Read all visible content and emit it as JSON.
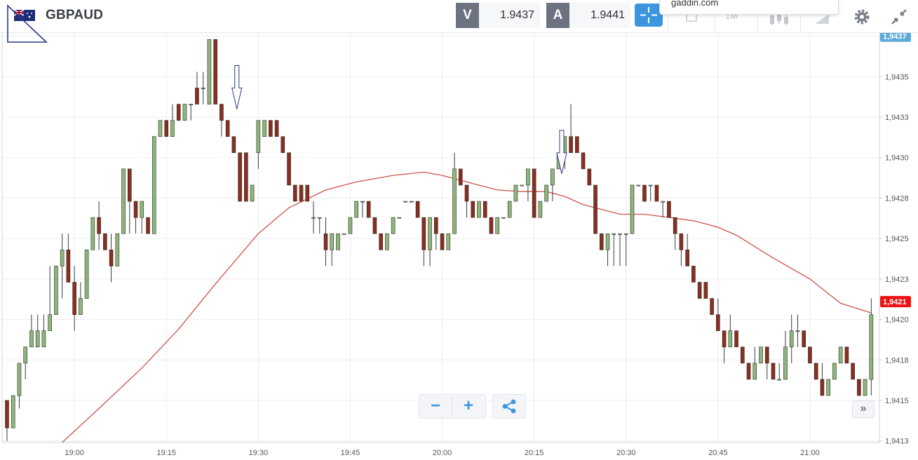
{
  "header": {
    "symbol": "GBPAUD",
    "bid_label": "V",
    "bid_value": "1.9437",
    "ask_label": "A",
    "ask_value": "1.9441",
    "timeframe": "1M",
    "popup_text": "gaddin.com"
  },
  "colors": {
    "up": "#8db87a",
    "down": "#8b2e1e",
    "ma": "#cd5348",
    "accent": "#3b96df",
    "last_price_bg": "#ee1111",
    "current_price_bg": "#5aa9d8"
  },
  "icons": [
    "flag-icon",
    "crosshair-icon",
    "chart-type-icon",
    "candlestick-icon",
    "draw-icon",
    "gear-icon",
    "collapse-icon",
    "zoom-out-icon",
    "zoom-in-icon",
    "share-icon",
    "forward-icon",
    "arrow-down-icon"
  ],
  "controls": {
    "zoom_out": "−",
    "zoom_in": "+",
    "forward": "»"
  },
  "chart_data": {
    "type": "candlestick",
    "ylim": [
      1.94124,
      1.94377
    ],
    "y_ticks": [
      {
        "value": 1.94375,
        "label": "1,9437"
      },
      {
        "value": 1.9435,
        "label": "1,9435"
      },
      {
        "value": 1.94325,
        "label": "1,9433"
      },
      {
        "value": 1.943,
        "label": "1,9430"
      },
      {
        "value": 1.94275,
        "label": "1,9428"
      },
      {
        "value": 1.9425,
        "label": "1,9425"
      },
      {
        "value": 1.94225,
        "label": "1,9423"
      },
      {
        "value": 1.942,
        "label": "1,9420"
      },
      {
        "value": 1.94175,
        "label": "1,9418"
      },
      {
        "value": 1.9415,
        "label": "1,9415"
      },
      {
        "value": 1.94125,
        "label": "1,9413"
      }
    ],
    "x_ticks": [
      {
        "index": 11,
        "label": "19:00"
      },
      {
        "index": 26,
        "label": "19:15"
      },
      {
        "index": 41,
        "label": "19:30"
      },
      {
        "index": 56,
        "label": "19:45"
      },
      {
        "index": 71,
        "label": "20:00"
      },
      {
        "index": 86,
        "label": "20:15"
      },
      {
        "index": 101,
        "label": "20:30"
      },
      {
        "index": 116,
        "label": "20:45"
      },
      {
        "index": 131,
        "label": "21:00"
      }
    ],
    "current_price": {
      "value": 1.94375,
      "label": "1,9437"
    },
    "last_price": {
      "value": 1.94211,
      "label": "1,9421"
    },
    "moving_average": [
      [
        9,
        1.94124
      ],
      [
        15,
        1.94145
      ],
      [
        22,
        1.9417
      ],
      [
        28,
        1.94194
      ],
      [
        34,
        1.94222
      ],
      [
        41,
        1.94253
      ],
      [
        46,
        1.94269
      ],
      [
        52,
        1.9428
      ],
      [
        57,
        1.94285
      ],
      [
        63,
        1.94289
      ],
      [
        68,
        1.94291
      ],
      [
        71,
        1.94289
      ],
      [
        76,
        1.94284
      ],
      [
        80,
        1.9428
      ],
      [
        84,
        1.94279
      ],
      [
        88,
        1.94279
      ],
      [
        91,
        1.94276
      ],
      [
        94,
        1.94271
      ],
      [
        97,
        1.94268
      ],
      [
        100,
        1.94265
      ],
      [
        104,
        1.94265
      ],
      [
        108,
        1.94263
      ],
      [
        112,
        1.94261
      ],
      [
        116,
        1.94257
      ],
      [
        119,
        1.94252
      ],
      [
        125,
        1.94238
      ],
      [
        131,
        1.94225
      ],
      [
        136,
        1.9421
      ],
      [
        141,
        1.94204
      ]
    ],
    "arrows": [
      {
        "index": 37.5,
        "value": 1.9433
      },
      {
        "index": 90.5,
        "value": 1.9429
      }
    ],
    "candles": [
      [
        1.9415,
        1.94133,
        1.9415,
        1.94125
      ],
      [
        1.94133,
        1.94153,
        1.94153,
        1.94133
      ],
      [
        1.94153,
        1.94173,
        1.94173,
        1.94145
      ],
      [
        1.94173,
        1.94183,
        1.94183,
        1.94163
      ],
      [
        1.94183,
        1.94193,
        1.94203,
        1.94183
      ],
      [
        1.94183,
        1.94193,
        1.94203,
        1.94183
      ],
      [
        1.94183,
        1.94193,
        1.94203,
        1.94183
      ],
      [
        1.94193,
        1.94203,
        1.94233,
        1.94193
      ],
      [
        1.94203,
        1.94233,
        1.94233,
        1.94203
      ],
      [
        1.94233,
        1.94243,
        1.94253,
        1.94213
      ],
      [
        1.94243,
        1.94223,
        1.94253,
        1.94223
      ],
      [
        1.94223,
        1.94203,
        1.94233,
        1.94193
      ],
      [
        1.94203,
        1.94213,
        1.94223,
        1.94203
      ],
      [
        1.94213,
        1.94243,
        1.94243,
        1.94213
      ],
      [
        1.94243,
        1.94263,
        1.94263,
        1.94243
      ],
      [
        1.94263,
        1.94253,
        1.94273,
        1.94243
      ],
      [
        1.94253,
        1.94243,
        1.94253,
        1.94243
      ],
      [
        1.94243,
        1.94233,
        1.94253,
        1.94223
      ],
      [
        1.94233,
        1.94253,
        1.94253,
        1.94233
      ],
      [
        1.94253,
        1.94293,
        1.94293,
        1.94253
      ],
      [
        1.94293,
        1.94273,
        1.94293,
        1.94253
      ],
      [
        1.94273,
        1.94263,
        1.94273,
        1.94253
      ],
      [
        1.94263,
        1.94273,
        1.94273,
        1.94253
      ],
      [
        1.94263,
        1.94253,
        1.94263,
        1.94253
      ],
      [
        1.94253,
        1.94313,
        1.94313,
        1.94253
      ],
      [
        1.94313,
        1.94323,
        1.94323,
        1.94313
      ],
      [
        1.94323,
        1.94313,
        1.94323,
        1.94313
      ],
      [
        1.94313,
        1.94323,
        1.94333,
        1.94313
      ],
      [
        1.94333,
        1.94323,
        1.94333,
        1.94323
      ],
      [
        1.94323,
        1.94333,
        1.94333,
        1.94323
      ],
      [
        1.94333,
        1.94333,
        1.94333,
        1.94323
      ],
      [
        1.94343,
        1.94333,
        1.94353,
        1.94333
      ],
      [
        1.94343,
        1.94343,
        1.94353,
        1.94333
      ],
      [
        1.94333,
        1.94373,
        1.94373,
        1.94333
      ],
      [
        1.94373,
        1.94333,
        1.94373,
        1.94333
      ],
      [
        1.94333,
        1.94323,
        1.94333,
        1.94313
      ],
      [
        1.94323,
        1.94313,
        1.94323,
        1.94313
      ],
      [
        1.94313,
        1.94303,
        1.94313,
        1.94303
      ],
      [
        1.94303,
        1.94273,
        1.94303,
        1.94273
      ],
      [
        1.94303,
        1.94273,
        1.94303,
        1.94273
      ],
      [
        1.94273,
        1.94283,
        1.94283,
        1.94273
      ],
      [
        1.94303,
        1.94323,
        1.94323,
        1.94293
      ],
      [
        1.94313,
        1.94323,
        1.94323,
        1.94313
      ],
      [
        1.94323,
        1.94313,
        1.94323,
        1.94313
      ],
      [
        1.94323,
        1.94313,
        1.94323,
        1.94313
      ],
      [
        1.94313,
        1.94303,
        1.94313,
        1.94303
      ],
      [
        1.94303,
        1.94283,
        1.94303,
        1.94283
      ],
      [
        1.94283,
        1.94273,
        1.94283,
        1.94273
      ],
      [
        1.94283,
        1.94273,
        1.94283,
        1.94273
      ],
      [
        1.94283,
        1.94273,
        1.94283,
        1.94273
      ],
      [
        1.94263,
        1.94263,
        1.94273,
        1.94253
      ],
      [
        1.94263,
        1.94263,
        1.94263,
        1.94253
      ],
      [
        1.94253,
        1.94243,
        1.94263,
        1.94233
      ],
      [
        1.94243,
        1.94253,
        1.94253,
        1.94233
      ],
      [
        1.94243,
        1.94253,
        1.94253,
        1.94243
      ],
      [
        1.94253,
        1.94253,
        1.94253,
        1.94253
      ],
      [
        1.94253,
        1.94263,
        1.94263,
        1.94253
      ],
      [
        1.94263,
        1.94273,
        1.94273,
        1.94263
      ],
      [
        1.94273,
        1.94273,
        1.94273,
        1.94263
      ],
      [
        1.94273,
        1.94263,
        1.94273,
        1.94263
      ],
      [
        1.94263,
        1.94253,
        1.94263,
        1.94253
      ],
      [
        1.94253,
        1.94243,
        1.94253,
        1.94243
      ],
      [
        1.94243,
        1.94253,
        1.94253,
        1.94243
      ],
      [
        1.94253,
        1.94263,
        1.94263,
        1.94253
      ],
      [
        1.94263,
        1.94263,
        1.94263,
        1.94263
      ],
      [
        1.94273,
        1.94273,
        1.94273,
        1.94273
      ],
      [
        1.94273,
        1.94273,
        1.94273,
        1.94273
      ],
      [
        1.94273,
        1.94263,
        1.94273,
        1.94263
      ],
      [
        1.94263,
        1.94243,
        1.94263,
        1.94233
      ],
      [
        1.94243,
        1.94263,
        1.94263,
        1.94233
      ],
      [
        1.94263,
        1.94253,
        1.94263,
        1.94243
      ],
      [
        1.94253,
        1.94243,
        1.94253,
        1.94243
      ],
      [
        1.94243,
        1.94253,
        1.94253,
        1.94243
      ],
      [
        1.94253,
        1.94293,
        1.94303,
        1.94253
      ],
      [
        1.94293,
        1.94283,
        1.94293,
        1.94283
      ],
      [
        1.94283,
        1.94273,
        1.94283,
        1.94263
      ],
      [
        1.94273,
        1.94263,
        1.94273,
        1.94263
      ],
      [
        1.94263,
        1.94273,
        1.94273,
        1.94263
      ],
      [
        1.94273,
        1.94263,
        1.94273,
        1.94263
      ],
      [
        1.94263,
        1.94253,
        1.94263,
        1.94253
      ],
      [
        1.94253,
        1.94263,
        1.94263,
        1.94253
      ],
      [
        1.94263,
        1.94263,
        1.94263,
        1.94263
      ],
      [
        1.94263,
        1.94273,
        1.94273,
        1.94263
      ],
      [
        1.94273,
        1.94283,
        1.94283,
        1.94273
      ],
      [
        1.94283,
        1.94283,
        1.94283,
        1.94283
      ],
      [
        1.94283,
        1.94293,
        1.94293,
        1.94273
      ],
      [
        1.94293,
        1.94263,
        1.94293,
        1.94263
      ],
      [
        1.94263,
        1.94273,
        1.94273,
        1.94263
      ],
      [
        1.94273,
        1.94283,
        1.94283,
        1.94273
      ],
      [
        1.94283,
        1.94293,
        1.94293,
        1.94273
      ],
      [
        1.94293,
        1.94303,
        1.94303,
        1.94293
      ],
      [
        1.94303,
        1.94313,
        1.94313,
        1.94293
      ],
      [
        1.94313,
        1.94303,
        1.94333,
        1.94303
      ],
      [
        1.94313,
        1.94303,
        1.94313,
        1.94303
      ],
      [
        1.94303,
        1.94293,
        1.94303,
        1.94293
      ],
      [
        1.94293,
        1.94283,
        1.94293,
        1.94283
      ],
      [
        1.94283,
        1.94253,
        1.94283,
        1.94253
      ],
      [
        1.94253,
        1.94243,
        1.94253,
        1.94243
      ],
      [
        1.94243,
        1.94253,
        1.94253,
        1.94233
      ],
      [
        1.94253,
        1.94253,
        1.94253,
        1.94233
      ],
      [
        1.94253,
        1.94253,
        1.94253,
        1.94233
      ],
      [
        1.94253,
        1.94253,
        1.94253,
        1.94233
      ],
      [
        1.94253,
        1.94283,
        1.94283,
        1.94253
      ],
      [
        1.94283,
        1.94283,
        1.94283,
        1.94283
      ],
      [
        1.94283,
        1.94273,
        1.94283,
        1.94273
      ],
      [
        1.94283,
        1.94283,
        1.94283,
        1.94273
      ],
      [
        1.94283,
        1.94273,
        1.94283,
        1.94273
      ],
      [
        1.94273,
        1.94273,
        1.94273,
        1.94263
      ],
      [
        1.94273,
        1.94263,
        1.94273,
        1.94263
      ],
      [
        1.94263,
        1.94253,
        1.94263,
        1.94243
      ],
      [
        1.94253,
        1.94243,
        1.94253,
        1.94233
      ],
      [
        1.94243,
        1.94233,
        1.94253,
        1.94233
      ],
      [
        1.94233,
        1.94223,
        1.94233,
        1.94223
      ],
      [
        1.94223,
        1.94213,
        1.94223,
        1.94213
      ],
      [
        1.94223,
        1.94213,
        1.94223,
        1.94213
      ],
      [
        1.94213,
        1.94203,
        1.94213,
        1.94203
      ],
      [
        1.94203,
        1.94193,
        1.94213,
        1.94193
      ],
      [
        1.94193,
        1.94183,
        1.94193,
        1.94173
      ],
      [
        1.94183,
        1.94193,
        1.94203,
        1.94183
      ],
      [
        1.94193,
        1.94183,
        1.94193,
        1.94183
      ],
      [
        1.94183,
        1.94173,
        1.94183,
        1.94173
      ],
      [
        1.94173,
        1.94163,
        1.94173,
        1.94163
      ],
      [
        1.94163,
        1.94173,
        1.94183,
        1.94163
      ],
      [
        1.94173,
        1.94183,
        1.94183,
        1.94173
      ],
      [
        1.94183,
        1.94173,
        1.94183,
        1.94163
      ],
      [
        1.94173,
        1.94163,
        1.94173,
        1.94163
      ],
      [
        1.94163,
        1.94163,
        1.94173,
        1.94163
      ],
      [
        1.94163,
        1.94183,
        1.94193,
        1.94163
      ],
      [
        1.94183,
        1.94193,
        1.94203,
        1.94173
      ],
      [
        1.94193,
        1.94193,
        1.94203,
        1.94183
      ],
      [
        1.94193,
        1.94183,
        1.94193,
        1.94183
      ],
      [
        1.94183,
        1.94173,
        1.94183,
        1.94173
      ],
      [
        1.94173,
        1.94163,
        1.94173,
        1.94163
      ],
      [
        1.94163,
        1.94153,
        1.94173,
        1.94153
      ],
      [
        1.94153,
        1.94163,
        1.94163,
        1.94153
      ],
      [
        1.94163,
        1.94173,
        1.94173,
        1.94163
      ],
      [
        1.94173,
        1.94183,
        1.94183,
        1.94173
      ],
      [
        1.94183,
        1.94173,
        1.94183,
        1.94173
      ],
      [
        1.94173,
        1.94163,
        1.94173,
        1.94163
      ],
      [
        1.94163,
        1.94153,
        1.94163,
        1.94153
      ],
      [
        1.94153,
        1.94163,
        1.94163,
        1.94153
      ],
      [
        1.94163,
        1.94203,
        1.94213,
        1.94153
      ]
    ]
  }
}
